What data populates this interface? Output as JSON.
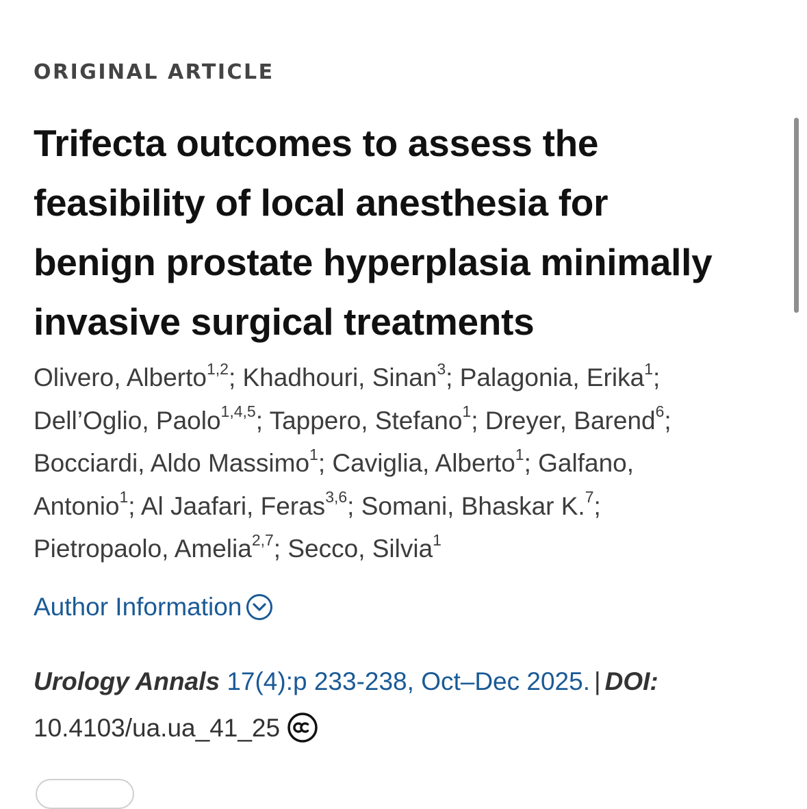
{
  "article_type": "ORIGINAL ARTICLE",
  "title_lines": [
    "Trifecta outcomes to assess the",
    "feasibility of local anesthesia for",
    "benign prostate hyperplasia minimally",
    "invasive surgical treatments"
  ],
  "authors": [
    {
      "name": "Olivero, Alberto",
      "aff": "1,2"
    },
    {
      "name": "Khadhouri, Sinan",
      "aff": "3"
    },
    {
      "name": "Palagonia, Erika",
      "aff": "1"
    },
    {
      "name": "Dell’Oglio, Paolo",
      "aff": "1,4,5"
    },
    {
      "name": "Tappero, Stefano",
      "aff": "1"
    },
    {
      "name": "Dreyer, Barend",
      "aff": "6"
    },
    {
      "name": "Bocciardi, Aldo Massimo",
      "aff": "1"
    },
    {
      "name": "Caviglia, Alberto",
      "aff": "1"
    },
    {
      "name": "Galfano, Antonio",
      "aff": "1"
    },
    {
      "name": "Al Jaafari, Feras",
      "aff": "3,6"
    },
    {
      "name": "Somani, Bhaskar K.",
      "aff": "7"
    },
    {
      "name": "Pietropaolo, Amelia",
      "aff": "2,7"
    },
    {
      "name": "Secco, Silvia",
      "aff": "1"
    }
  ],
  "author_lines_text": {
    "l1": {
      "a": "Olivero, Alberto",
      "a_sup": "1,2",
      "b": "; Khadhouri, Sinan",
      "b_sup": "3",
      "c": "; Palagonia, Erika",
      "c_sup": "1",
      "tail": ";"
    },
    "l2": {
      "a": "Dell’Oglio, Paolo",
      "a_sup": "1,4,5",
      "b": "; Tappero, Stefano",
      "b_sup": "1",
      "c": "; Dreyer, Barend",
      "c_sup": "6",
      "tail": ";"
    },
    "l3": {
      "a": "Bocciardi, Aldo Massimo",
      "a_sup": "1",
      "b": "; Caviglia, Alberto",
      "b_sup": "1",
      "c": "; Galfano,"
    },
    "l4": {
      "a": "Antonio",
      "a_sup": "1",
      "b": "; Al Jaafari, Feras",
      "b_sup": "3,6",
      "c": "; Somani, Bhaskar K.",
      "c_sup": "7",
      "tail": ";"
    },
    "l5": {
      "a": "Pietropaolo, Amelia",
      "a_sup": "2,7",
      "b": "; Secco, Silvia",
      "b_sup": "1"
    }
  },
  "author_info_label": "Author Information",
  "citation": {
    "journal": "Urology Annals",
    "issue": "17(4):p 233-238, Oct–Dec 2025.",
    "separator": "|",
    "doi_label": "DOI:",
    "doi": "10.4103/ua.ua_41_25",
    "license_icon": "creative-commons-icon"
  },
  "colors": {
    "link": "#1a5a96",
    "text": "#333333",
    "heading": "#111111"
  }
}
